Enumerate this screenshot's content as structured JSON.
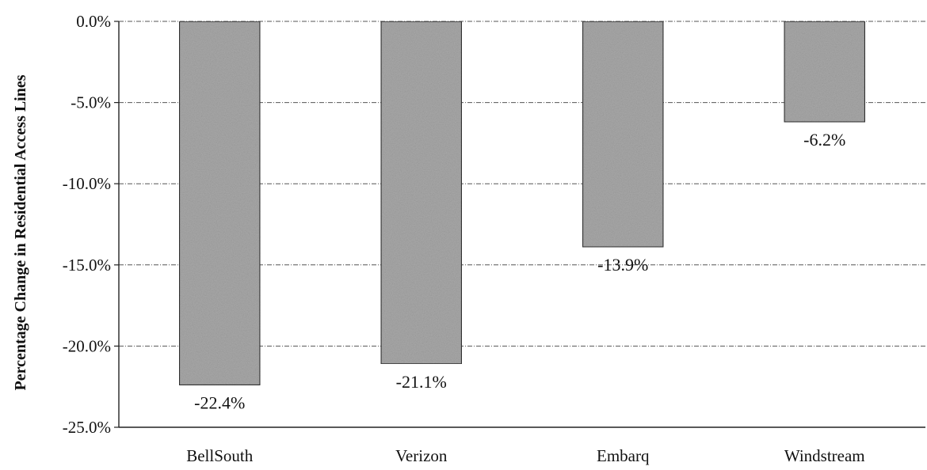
{
  "chart_data": {
    "type": "bar",
    "title": "",
    "xlabel": "",
    "ylabel": "Percentage Change in Residential Access Lines",
    "categories": [
      "BellSouth",
      "Verizon",
      "Embarq",
      "Windstream"
    ],
    "values": [
      -22.4,
      -21.1,
      -13.9,
      -6.2
    ],
    "data_labels": [
      "-22.4%",
      "-21.1%",
      "-13.9%",
      "-6.2%"
    ],
    "ylim": [
      -25,
      0
    ],
    "yticks": [
      0,
      -5,
      -10,
      -15,
      -20,
      -25
    ],
    "ytick_labels": [
      "0.0%",
      "-5.0%",
      "-10.0%",
      "-15.0%",
      "-20.0%",
      "-25.0%"
    ],
    "grid": true,
    "legend": "none",
    "colors": {
      "bar_fill": "#a9a9a9",
      "bar_edge": "#333333",
      "axis": "#222222",
      "grid": "#555555"
    }
  }
}
